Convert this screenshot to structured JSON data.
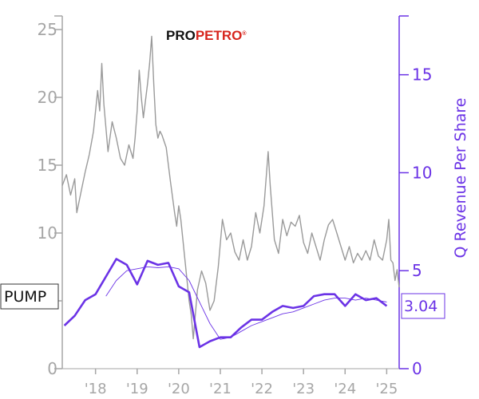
{
  "logo": {
    "text_a": "PRO",
    "text_b": "PETRO",
    "mark": "®"
  },
  "ticker": "PUMP",
  "colors": {
    "price": "#9a9a9a",
    "revenue": "#6b33e6",
    "revenue_avg": "#6b33e6",
    "axis_left": "#a6a6a6",
    "axis_right": "#6b33e6",
    "logo_red": "#d7261e"
  },
  "chart_data": {
    "type": "line",
    "title": "",
    "xlabel": "",
    "ylabel_left": "",
    "ylabel_right": "Q Revenue Per Share",
    "xlim": [
      2017.2,
      2025.3
    ],
    "ylim_left": [
      0,
      26
    ],
    "ylim_right": [
      0,
      18
    ],
    "x_ticks": [
      2018,
      2019,
      2020,
      2021,
      2022,
      2023,
      2024,
      2025
    ],
    "x_tick_labels": [
      "'18",
      "'19",
      "'20",
      "'21",
      "'22",
      "'23",
      "'24",
      "'25"
    ],
    "left_ticks": [
      0,
      5,
      10,
      15,
      20,
      25
    ],
    "right_ticks": [
      0,
      5,
      10,
      15
    ],
    "grid": false,
    "last_value": "3.04",
    "series": [
      {
        "axis": "left",
        "style": "price",
        "x": [
          2017.2,
          2017.3,
          2017.4,
          2017.5,
          2017.55,
          2017.65,
          2017.75,
          2017.85,
          2017.95,
          2018.05,
          2018.1,
          2018.15,
          2018.2,
          2018.3,
          2018.4,
          2018.5,
          2018.6,
          2018.7,
          2018.8,
          2018.9,
          2018.95,
          2019.0,
          2019.05,
          2019.1,
          2019.15,
          2019.25,
          2019.3,
          2019.35,
          2019.4,
          2019.45,
          2019.5,
          2019.55,
          2019.6,
          2019.7,
          2019.8,
          2019.9,
          2019.95,
          2020.0,
          2020.05,
          2020.1,
          2020.15,
          2020.2,
          2020.25,
          2020.3,
          2020.35,
          2020.45,
          2020.55,
          2020.65,
          2020.75,
          2020.85,
          2020.95,
          2021.05,
          2021.15,
          2021.25,
          2021.35,
          2021.45,
          2021.55,
          2021.65,
          2021.75,
          2021.85,
          2021.95,
          2022.05,
          2022.1,
          2022.15,
          2022.2,
          2022.3,
          2022.4,
          2022.5,
          2022.6,
          2022.7,
          2022.8,
          2022.9,
          2023.0,
          2023.1,
          2023.2,
          2023.3,
          2023.4,
          2023.5,
          2023.6,
          2023.7,
          2023.8,
          2023.9,
          2024.0,
          2024.1,
          2024.2,
          2024.3,
          2024.4,
          2024.5,
          2024.6,
          2024.7,
          2024.8,
          2024.9,
          2025.0,
          2025.05,
          2025.1,
          2025.15,
          2025.2,
          2025.25,
          2025.3
        ],
        "y": [
          13.5,
          14.3,
          12.8,
          14.0,
          11.5,
          13.0,
          14.5,
          15.8,
          17.5,
          20.5,
          19.0,
          22.5,
          19.5,
          16.0,
          18.2,
          17.0,
          15.5,
          15.0,
          16.5,
          15.5,
          17.0,
          19.0,
          22.0,
          20.0,
          18.5,
          21.0,
          22.5,
          24.5,
          21.0,
          18.0,
          17.0,
          17.5,
          17.2,
          16.3,
          13.8,
          11.5,
          10.5,
          12.0,
          11.0,
          9.5,
          8.0,
          6.5,
          5.0,
          4.0,
          2.2,
          5.8,
          7.2,
          6.3,
          4.3,
          5.0,
          7.5,
          11.0,
          9.5,
          10.0,
          8.6,
          8.0,
          9.5,
          8.0,
          9.0,
          11.5,
          10.0,
          12.0,
          14.0,
          16.0,
          13.5,
          9.5,
          8.5,
          11.0,
          9.8,
          10.8,
          10.5,
          11.3,
          9.3,
          8.5,
          10.0,
          9.0,
          8.0,
          9.5,
          10.6,
          11.0,
          10.0,
          9.0,
          8.0,
          9.0,
          7.8,
          8.5,
          8.0,
          8.7,
          8.0,
          9.5,
          8.3,
          8.0,
          9.5,
          11.0,
          8.0,
          7.8,
          6.5,
          7.3,
          6.0
        ]
      },
      {
        "axis": "right",
        "style": "revenue",
        "x": [
          2017.25,
          2017.5,
          2017.75,
          2018.0,
          2018.5,
          2018.75,
          2019.0,
          2019.25,
          2019.5,
          2019.75,
          2020.0,
          2020.25,
          2020.5,
          2020.75,
          2021.0,
          2021.25,
          2021.5,
          2021.75,
          2022.0,
          2022.25,
          2022.5,
          2022.75,
          2023.0,
          2023.25,
          2023.5,
          2023.75,
          2024.0,
          2024.25,
          2024.5,
          2024.75,
          2025.0
        ],
        "y": [
          2.2,
          2.7,
          3.5,
          3.8,
          5.6,
          5.3,
          4.3,
          5.5,
          5.3,
          5.4,
          4.2,
          3.9,
          1.1,
          1.4,
          1.6,
          1.6,
          2.1,
          2.5,
          2.5,
          2.9,
          3.2,
          3.1,
          3.2,
          3.7,
          3.8,
          3.8,
          3.2,
          3.8,
          3.5,
          3.6,
          3.2
        ]
      },
      {
        "axis": "right",
        "style": "revenue_avg",
        "x": [
          2018.25,
          2018.5,
          2018.75,
          2019.0,
          2019.25,
          2019.5,
          2019.75,
          2020.0,
          2020.25,
          2020.5,
          2020.75,
          2021.0,
          2021.25,
          2021.5,
          2021.75,
          2022.0,
          2022.25,
          2022.5,
          2022.75,
          2023.0,
          2023.25,
          2023.5,
          2023.75,
          2024.0,
          2024.25,
          2024.5,
          2024.75,
          2025.0
        ],
        "y": [
          3.7,
          4.5,
          5.0,
          5.1,
          5.2,
          5.15,
          5.2,
          5.1,
          4.5,
          3.4,
          2.3,
          1.5,
          1.6,
          1.9,
          2.2,
          2.4,
          2.6,
          2.8,
          2.9,
          3.1,
          3.3,
          3.5,
          3.6,
          3.6,
          3.5,
          3.6,
          3.5,
          3.4
        ]
      }
    ]
  }
}
